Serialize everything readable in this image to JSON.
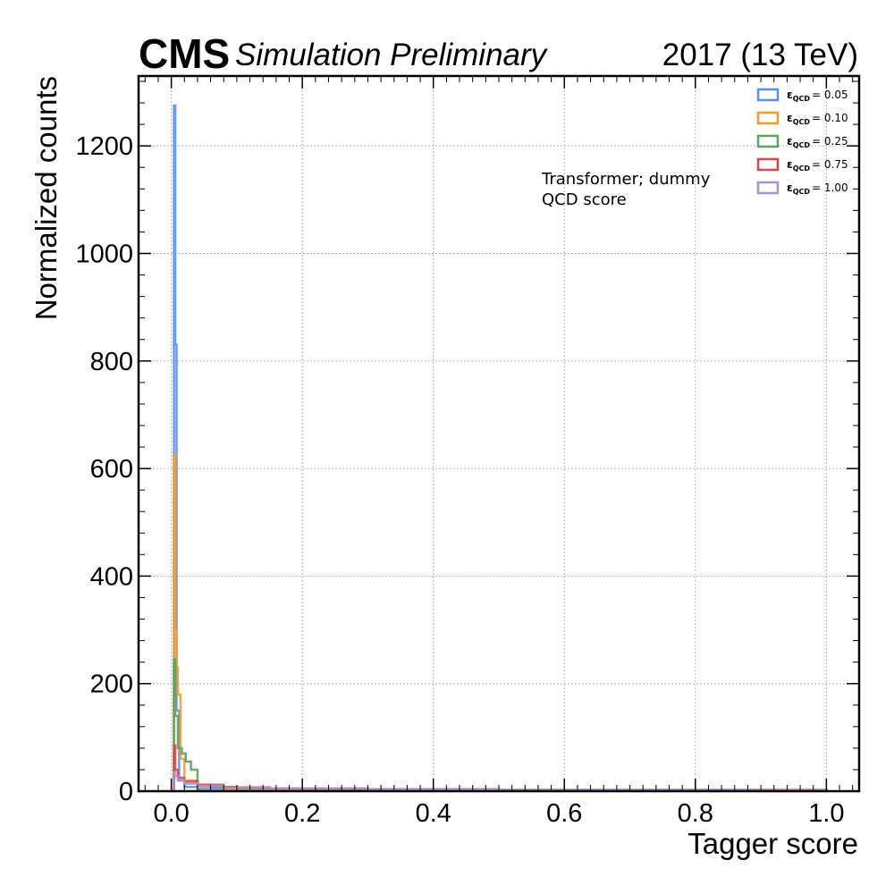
{
  "header": {
    "experiment": "CMS",
    "status": "Simulation Preliminary",
    "lumi": "2017 (13 TeV)"
  },
  "annotation": {
    "line1": "Transformer; dummy",
    "line2": "QCD score"
  },
  "chart_data": {
    "type": "line",
    "style": "step histogram",
    "title": "",
    "xlabel": "Tagger score",
    "ylabel": "Normalized counts",
    "xlim": [
      -0.05,
      1.05
    ],
    "ylim": [
      0,
      1330
    ],
    "grid": true,
    "legend_position": "top-right",
    "x_ticks": [
      0.0,
      0.2,
      0.4,
      0.6,
      0.8,
      1.0
    ],
    "x_tick_labels": [
      "0.0",
      "0.2",
      "0.4",
      "0.6",
      "0.8",
      "1.0"
    ],
    "y_ticks": [
      0,
      200,
      400,
      600,
      800,
      1000,
      1200
    ],
    "y_tick_labels": [
      "0",
      "200",
      "400",
      "600",
      "800",
      "1000",
      "1200"
    ],
    "series": [
      {
        "name": "ε_QCD = 0.05",
        "symbol": "ε",
        "subscript": "QCD",
        "value_label": "= 0.05",
        "color": "#5790fc",
        "x": [
          0.0,
          0.004,
          0.006,
          0.008,
          0.012,
          0.02,
          0.04,
          0.08,
          0.15,
          0.3,
          0.5,
          0.7,
          0.9,
          1.0
        ],
        "y": [
          0,
          1275,
          830,
          150,
          20,
          8,
          4,
          2,
          1,
          0.5,
          0.3,
          0.2,
          0.2,
          0
        ]
      },
      {
        "name": "ε_QCD = 0.10",
        "symbol": "ε",
        "subscript": "QCD",
        "value_label": "= 0.10",
        "color": "#f89c20",
        "x": [
          0.0,
          0.004,
          0.006,
          0.008,
          0.01,
          0.014,
          0.02,
          0.04,
          0.08,
          0.15,
          0.3,
          0.5,
          0.7,
          0.9,
          1.0
        ],
        "y": [
          0,
          625,
          300,
          230,
          180,
          60,
          20,
          8,
          4,
          2,
          1,
          0.5,
          0.4,
          0.3,
          0
        ]
      },
      {
        "name": "ε_QCD = 0.25",
        "symbol": "ε",
        "subscript": "QCD",
        "value_label": "= 0.25",
        "color": "#5aa55a",
        "x": [
          0.0,
          0.004,
          0.006,
          0.01,
          0.016,
          0.022,
          0.03,
          0.04,
          0.06,
          0.1,
          0.2,
          0.4,
          0.6,
          0.8,
          1.0
        ],
        "y": [
          0,
          245,
          140,
          80,
          70,
          55,
          40,
          12,
          8,
          5,
          3,
          1.5,
          1,
          1,
          0
        ]
      },
      {
        "name": "ε_QCD = 0.75",
        "symbol": "ε",
        "subscript": "QCD",
        "value_label": "= 0.75",
        "color": "#d44a4a",
        "x": [
          0.0,
          0.004,
          0.006,
          0.01,
          0.02,
          0.04,
          0.08,
          0.15,
          0.3,
          0.5,
          0.7,
          0.9,
          1.0
        ],
        "y": [
          0,
          85,
          40,
          25,
          18,
          12,
          7,
          5,
          3,
          2,
          2,
          2,
          0
        ]
      },
      {
        "name": "ε_QCD = 1.00",
        "symbol": "ε",
        "subscript": "QCD",
        "value_label": "= 1.00",
        "color": "#b08fd0",
        "x": [
          0.0,
          0.004,
          0.006,
          0.01,
          0.02,
          0.04,
          0.08,
          0.15,
          0.3,
          0.5,
          0.7,
          0.9,
          1.0
        ],
        "y": [
          0,
          35,
          28,
          20,
          14,
          10,
          6,
          5,
          4,
          3,
          3,
          3,
          0
        ]
      }
    ]
  }
}
